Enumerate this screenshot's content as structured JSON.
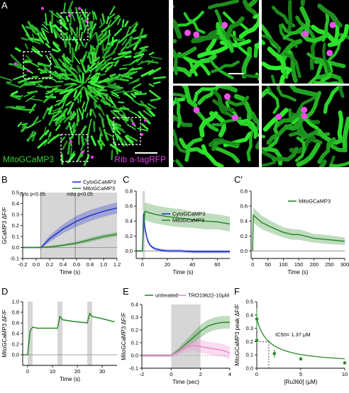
{
  "panels": {
    "A": {
      "letter": "A",
      "label_green": "MitoGCaMP3",
      "label_magenta": "Rib a-tagRFP"
    },
    "B": {
      "letter": "B"
    },
    "C": {
      "letter": "C"
    },
    "Cp": {
      "letter": "C′"
    },
    "D": {
      "letter": "D"
    },
    "E": {
      "letter": "E"
    },
    "F": {
      "letter": "F"
    }
  },
  "colors": {
    "cyto": "#2233cc",
    "mito": "#2a8a2a",
    "mito_band": "#8fd88f",
    "cyto_band": "#9aa6ee",
    "ru": "#ee88cc",
    "grey_band": "#d6d6d6"
  },
  "chart_data": [
    {
      "id": "B",
      "type": "line",
      "ylabel": "GCaMP3 ΔF/F",
      "xlabel": "Time (s)",
      "xlim": [
        -0.2,
        1.2
      ],
      "ylim": [
        -0.1,
        0.5
      ],
      "xticks": [
        "-0.2",
        "0.0",
        "0.2",
        "0.4",
        "0.6",
        "0.8",
        "1.0",
        "1.2"
      ],
      "yticks": [
        "-0.1",
        "0.0",
        "0.1",
        "0.2",
        "0.3",
        "0.4",
        "0.5"
      ],
      "annotations": [
        "cyto p<0.05",
        "mito p<0.05"
      ],
      "vlines": [
        0.07,
        0.58
      ],
      "shade": [
        0.07,
        1.2
      ],
      "series": [
        {
          "name": "CytoGCaMP3",
          "color": "#2233cc",
          "x": [
            -0.2,
            0.0,
            0.07,
            0.2,
            0.4,
            0.6,
            0.8,
            1.0,
            1.2
          ],
          "y": [
            0,
            0,
            0,
            0.08,
            0.17,
            0.24,
            0.29,
            0.33,
            0.36
          ],
          "err": [
            0.005,
            0.005,
            0.01,
            0.03,
            0.04,
            0.05,
            0.05,
            0.05,
            0.05
          ]
        },
        {
          "name": "MitoGCaMP3",
          "color": "#2a8a2a",
          "x": [
            -0.2,
            0.0,
            0.2,
            0.4,
            0.6,
            0.8,
            1.0,
            1.2
          ],
          "y": [
            0,
            0,
            0.005,
            0.02,
            0.04,
            0.07,
            0.1,
            0.12
          ],
          "err": [
            0.005,
            0.005,
            0.01,
            0.01,
            0.015,
            0.02,
            0.02,
            0.02
          ]
        }
      ]
    },
    {
      "id": "C",
      "type": "line",
      "xlabel": "Time (s)",
      "xlim": [
        -5,
        70
      ],
      "ylim": [
        -0.1,
        0.8
      ],
      "xticks": [
        "0",
        "20",
        "40",
        "60"
      ],
      "yticks": [
        "0.0",
        "0.2",
        "0.4",
        "0.6",
        "0.8"
      ],
      "shade": [
        0,
        2
      ],
      "series": [
        {
          "name": "CytoGCaMP3",
          "color": "#2233cc",
          "x": [
            -5,
            0,
            1,
            2,
            4,
            6,
            8,
            10,
            15,
            20,
            30,
            40,
            50,
            60,
            70
          ],
          "y": [
            0,
            0,
            0.5,
            0.3,
            0.15,
            0.08,
            0.05,
            0.03,
            0.01,
            0,
            0,
            -0.01,
            -0.01,
            -0.01,
            -0.01
          ],
          "err": [
            0.01,
            0.01,
            0.05,
            0.05,
            0.03,
            0.02,
            0.02,
            0.02,
            0.02,
            0.02,
            0.02,
            0.02,
            0.02,
            0.02,
            0.02
          ]
        },
        {
          "name": "MitoGCaMP3",
          "color": "#2a8a2a",
          "x": [
            -5,
            0,
            1,
            2,
            4,
            10,
            20,
            30,
            40,
            50,
            60,
            70
          ],
          "y": [
            0,
            0,
            0.35,
            0.53,
            0.52,
            0.49,
            0.46,
            0.44,
            0.42,
            0.4,
            0.39,
            0.36
          ],
          "err": [
            0.01,
            0.01,
            0.08,
            0.12,
            0.12,
            0.12,
            0.12,
            0.12,
            0.11,
            0.11,
            0.1,
            0.1
          ]
        }
      ]
    },
    {
      "id": "Cp",
      "type": "line",
      "xlabel": "Time (s)",
      "xlim": [
        -5,
        300
      ],
      "ylim": [
        -0.1,
        0.8
      ],
      "xticks": [
        "0",
        "50",
        "100",
        "150",
        "200",
        "250",
        "300"
      ],
      "yticks": [
        "0.0",
        "0.2",
        "0.4",
        "0.6",
        "0.8"
      ],
      "series": [
        {
          "name": "MitoGCaMP3",
          "color": "#2a8a2a",
          "x": [
            0,
            2,
            10,
            30,
            60,
            100,
            130,
            150,
            200,
            250,
            300
          ],
          "y": [
            0,
            0.48,
            0.45,
            0.38,
            0.32,
            0.25,
            0.22,
            0.22,
            0.17,
            0.15,
            0.13
          ],
          "err": [
            0.01,
            0.1,
            0.1,
            0.09,
            0.08,
            0.07,
            0.07,
            0.07,
            0.06,
            0.06,
            0.05
          ]
        }
      ]
    },
    {
      "id": "D",
      "type": "line",
      "ylabel": "MitoGCaMP3 ΔF/F",
      "xlabel": "Time (s)",
      "xlim": [
        -2,
        36
      ],
      "ylim": [
        -0.2,
        1.0
      ],
      "xticks": [
        "0",
        "10",
        "20",
        "30"
      ],
      "yticks": [
        "0.0",
        "0.2",
        "0.4",
        "0.6",
        "0.8",
        "1.0"
      ],
      "shade": [
        [
          0,
          2
        ],
        [
          12,
          14
        ],
        [
          24,
          26
        ]
      ],
      "series": [
        {
          "name": "MitoGCaMP3",
          "color": "#2a8a2a",
          "x": [
            -2,
            0,
            1,
            2,
            4,
            8,
            12,
            13,
            14,
            18,
            24,
            25,
            26,
            30,
            35
          ],
          "y": [
            0,
            0,
            0.45,
            0.52,
            0.5,
            0.5,
            0.5,
            0.72,
            0.66,
            0.63,
            0.6,
            0.78,
            0.72,
            0.68,
            0.62
          ],
          "err": [
            0,
            0,
            0,
            0,
            0,
            0,
            0,
            0,
            0,
            0,
            0,
            0,
            0,
            0,
            0
          ]
        }
      ]
    },
    {
      "id": "E",
      "type": "line",
      "ylabel": "MitoGCaMP3 ΔF/F",
      "xlabel": "Time (sec)",
      "xlim": [
        -2,
        4
      ],
      "ylim": [
        -0.1,
        0.4
      ],
      "xticks": [
        "-2",
        "0",
        "2",
        "4"
      ],
      "yticks": [
        "-0.1",
        "0.0",
        "0.1",
        "0.2",
        "0.3",
        "0.4"
      ],
      "shade": [
        0,
        2
      ],
      "series": [
        {
          "name": "untreated",
          "color": "#2a8a2a",
          "x": [
            -2,
            -1,
            0,
            0.5,
            1,
            1.5,
            2,
            2.5,
            3,
            3.5,
            4
          ],
          "y": [
            0,
            0,
            0,
            0.04,
            0.09,
            0.14,
            0.19,
            0.23,
            0.25,
            0.26,
            0.26
          ],
          "err": [
            0.01,
            0.01,
            0.01,
            0.02,
            0.03,
            0.04,
            0.05,
            0.05,
            0.05,
            0.05,
            0.05
          ]
        },
        {
          "name": "TRO19622-10μM",
          "color": "#ee88cc",
          "x": [
            -2,
            -1,
            0,
            0.5,
            1,
            1.5,
            2,
            2.5,
            3,
            3.5,
            4
          ],
          "y": [
            0,
            0,
            0,
            0.03,
            0.06,
            0.08,
            0.07,
            0.06,
            0.05,
            0.04,
            0.02
          ],
          "err": [
            0.01,
            0.01,
            0.01,
            0.02,
            0.03,
            0.04,
            0.05,
            0.05,
            0.05,
            0.05,
            0.05
          ]
        }
      ]
    },
    {
      "id": "F",
      "type": "scatter",
      "ylabel": "MitoGCaMP3 peak ΔF/F",
      "xlabel": "[Ru360] (μM)",
      "xlim": [
        0,
        10
      ],
      "ylim": [
        0,
        0.5
      ],
      "xticks": [
        "0",
        "5",
        "10"
      ],
      "yticks": [
        "0.0",
        "0.1",
        "0.2",
        "0.3",
        "0.4",
        "0.5"
      ],
      "annotation": "IC50= 1.37 μM",
      "ic50": 1.37,
      "points": [
        {
          "x": 0,
          "y": 0.37,
          "err": 0.08
        },
        {
          "x": 0,
          "y": 0.21,
          "err": 0.02
        },
        {
          "x": 2,
          "y": 0.11,
          "err": 0.03
        },
        {
          "x": 5,
          "y": 0.07,
          "err": 0.01
        },
        {
          "x": 10,
          "y": 0.04,
          "err": 0.005
        }
      ],
      "fit": {
        "top": 0.37,
        "bottom": 0.03,
        "ic50": 1.37
      }
    }
  ]
}
